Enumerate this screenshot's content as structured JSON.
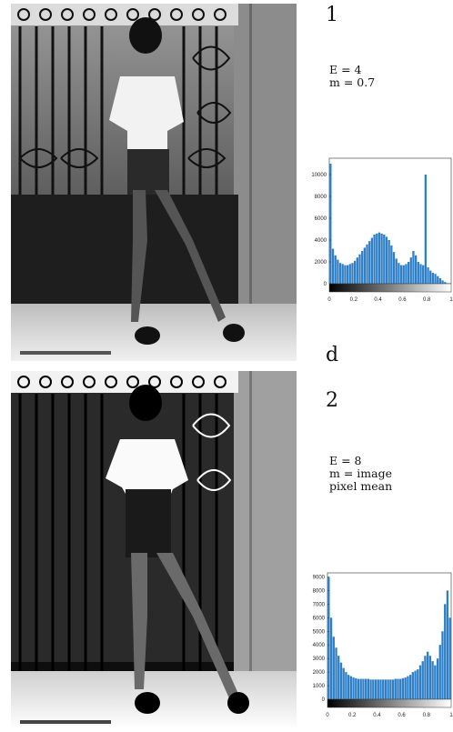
{
  "panels": [
    {
      "id": "panel-1",
      "number": "1",
      "params": [
        "E = 4",
        "m = 0.7"
      ],
      "chart_data": {
        "type": "bar",
        "title": "",
        "xlabel": "",
        "ylabel": "",
        "xlim": [
          0,
          1
        ],
        "ylim": [
          0,
          11500
        ],
        "x_ticks": [
          "0",
          "0.2",
          "0.4",
          "0.6",
          "0.8",
          "1"
        ],
        "y_ticks": [
          "0",
          "2000",
          "4000",
          "6000",
          "8000",
          "10000"
        ],
        "x": [
          0.01,
          0.03,
          0.05,
          0.07,
          0.09,
          0.11,
          0.13,
          0.15,
          0.17,
          0.19,
          0.21,
          0.23,
          0.25,
          0.27,
          0.29,
          0.31,
          0.33,
          0.35,
          0.37,
          0.39,
          0.41,
          0.43,
          0.45,
          0.47,
          0.49,
          0.51,
          0.53,
          0.55,
          0.57,
          0.59,
          0.61,
          0.63,
          0.65,
          0.67,
          0.69,
          0.71,
          0.73,
          0.75,
          0.77,
          0.79,
          0.81,
          0.83,
          0.85,
          0.87,
          0.89,
          0.91,
          0.93,
          0.95,
          0.97,
          0.99
        ],
        "values": [
          11000,
          3200,
          2600,
          2200,
          1900,
          1800,
          1700,
          1700,
          1800,
          1900,
          2100,
          2400,
          2700,
          3000,
          3300,
          3600,
          3900,
          4200,
          4500,
          4600,
          4700,
          4600,
          4500,
          4300,
          4000,
          3500,
          2900,
          2300,
          1900,
          1700,
          1700,
          1800,
          2000,
          2400,
          3000,
          2600,
          2000,
          1800,
          1700,
          10000,
          1500,
          1200,
          1000,
          900,
          700,
          500,
          300,
          150,
          50,
          20
        ]
      }
    },
    {
      "id": "panel-2",
      "number": "2",
      "params": [
        "E = 8",
        "m = image",
        "pixel mean"
      ],
      "chart_data": {
        "type": "bar",
        "title": "",
        "xlabel": "",
        "ylabel": "",
        "xlim": [
          0,
          1
        ],
        "ylim": [
          0,
          9300
        ],
        "x_ticks": [
          "0",
          "0.2",
          "0.4",
          "0.6",
          "0.8",
          "1"
        ],
        "y_ticks": [
          "0",
          "1000",
          "2000",
          "3000",
          "4000",
          "5000",
          "6000",
          "7000",
          "8000",
          "9000"
        ],
        "x": [
          0.01,
          0.03,
          0.05,
          0.07,
          0.09,
          0.11,
          0.13,
          0.15,
          0.17,
          0.19,
          0.21,
          0.23,
          0.25,
          0.27,
          0.29,
          0.31,
          0.33,
          0.35,
          0.37,
          0.39,
          0.41,
          0.43,
          0.45,
          0.47,
          0.49,
          0.51,
          0.53,
          0.55,
          0.57,
          0.59,
          0.61,
          0.63,
          0.65,
          0.67,
          0.69,
          0.71,
          0.73,
          0.75,
          0.77,
          0.79,
          0.81,
          0.83,
          0.85,
          0.87,
          0.89,
          0.91,
          0.93,
          0.95,
          0.97,
          0.99
        ],
        "values": [
          9000,
          6000,
          4600,
          3800,
          3200,
          2700,
          2300,
          2000,
          1800,
          1700,
          1600,
          1550,
          1500,
          1500,
          1500,
          1500,
          1500,
          1450,
          1450,
          1450,
          1450,
          1450,
          1450,
          1450,
          1450,
          1450,
          1450,
          1500,
          1500,
          1500,
          1550,
          1600,
          1700,
          1800,
          2000,
          2100,
          2200,
          2500,
          2800,
          3200,
          3500,
          3200,
          2800,
          2500,
          3000,
          4000,
          5000,
          7000,
          8000,
          6000
        ]
      }
    }
  ],
  "between_label": "d",
  "photo_caption_1": "",
  "photo_caption_2": ""
}
